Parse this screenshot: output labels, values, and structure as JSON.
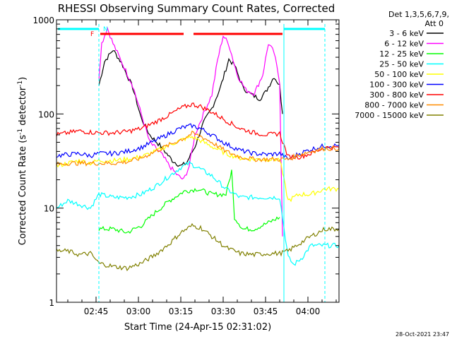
{
  "chart_data": {
    "type": "line",
    "title": "RHESSI Observing Summary Count Rates, Corrected",
    "ylabel_prefix": "Corrected Count Rate (s",
    "ylabel_mid": " detector",
    "ylabel_suffix": ")",
    "ylabel_sup": "-1",
    "xlabel": "Start Time (24-Apr-15 02:31:02)",
    "footer_date": "28-Oct-2021 23:47",
    "y_scale": "log",
    "ylim": [
      1,
      1000
    ],
    "xlim_minutes_after_start": [
      0,
      100
    ],
    "x_ticks": [
      {
        "label": "02:45",
        "t": 14
      },
      {
        "label": "03:00",
        "t": 29
      },
      {
        "label": "03:15",
        "t": 44
      },
      {
        "label": "03:30",
        "t": 59
      },
      {
        "label": "03:45",
        "t": 74
      },
      {
        "label": "04:00",
        "t": 89
      }
    ],
    "y_ticks": [
      {
        "label": "1",
        "v": 1
      },
      {
        "label": "10",
        "v": 10
      },
      {
        "label": "100",
        "v": 100
      },
      {
        "label": "1000",
        "v": 1000
      }
    ],
    "legend_header": [
      "Det 1,3,5,6,7,9,",
      "Att 0"
    ],
    "series": [
      {
        "name": "3 - 6 keV",
        "color": "#000000",
        "points": [
          [
            15,
            200
          ],
          [
            17,
            360
          ],
          [
            20,
            480
          ],
          [
            23,
            350
          ],
          [
            27,
            190
          ],
          [
            30,
            90
          ],
          [
            33,
            60
          ],
          [
            37,
            45
          ],
          [
            41,
            32
          ],
          [
            44,
            28
          ],
          [
            46,
            30
          ],
          [
            49,
            45
          ],
          [
            52,
            80
          ],
          [
            55,
            115
          ],
          [
            58,
            190
          ],
          [
            61,
            380
          ],
          [
            63,
            330
          ],
          [
            66,
            190
          ],
          [
            69,
            160
          ],
          [
            72,
            145
          ],
          [
            74,
            170
          ],
          [
            77,
            250
          ],
          [
            79,
            200
          ],
          [
            80,
            100
          ]
        ]
      },
      {
        "name": "6 - 12 keV",
        "color": "#ff00ff",
        "points": [
          [
            15,
            240
          ],
          [
            16,
            560
          ],
          [
            18,
            820
          ],
          [
            20,
            560
          ],
          [
            23,
            360
          ],
          [
            27,
            200
          ],
          [
            30,
            100
          ],
          [
            33,
            50
          ],
          [
            37,
            38
          ],
          [
            40,
            28
          ],
          [
            43,
            22
          ],
          [
            45,
            20
          ],
          [
            47,
            28
          ],
          [
            49,
            60
          ],
          [
            52,
            100
          ],
          [
            55,
            160
          ],
          [
            57,
            370
          ],
          [
            59,
            680
          ],
          [
            61,
            550
          ],
          [
            64,
            260
          ],
          [
            67,
            180
          ],
          [
            70,
            165
          ],
          [
            73,
            260
          ],
          [
            75,
            560
          ],
          [
            77,
            450
          ],
          [
            79,
            220
          ],
          [
            80,
            5
          ]
        ]
      },
      {
        "name": "12 - 25 keV",
        "color": "#00ff00",
        "points": [
          [
            15,
            6
          ],
          [
            20,
            6
          ],
          [
            25,
            5.5
          ],
          [
            30,
            6.5
          ],
          [
            35,
            9
          ],
          [
            40,
            12
          ],
          [
            45,
            15
          ],
          [
            50,
            16
          ],
          [
            55,
            14
          ],
          [
            60,
            14
          ],
          [
            62,
            25
          ],
          [
            63,
            8
          ],
          [
            66,
            6
          ],
          [
            70,
            6
          ],
          [
            75,
            7
          ],
          [
            79,
            8
          ]
        ]
      },
      {
        "name": "25 - 50 keV",
        "color": "#00ffff",
        "points": [
          [
            0,
            10
          ],
          [
            4,
            12
          ],
          [
            8,
            11
          ],
          [
            12,
            10
          ],
          [
            15,
            14
          ],
          [
            20,
            13
          ],
          [
            25,
            13
          ],
          [
            30,
            14
          ],
          [
            35,
            17
          ],
          [
            40,
            22
          ],
          [
            44,
            27
          ],
          [
            47,
            30
          ],
          [
            50,
            27
          ],
          [
            55,
            22
          ],
          [
            60,
            16
          ],
          [
            65,
            13
          ],
          [
            70,
            13
          ],
          [
            75,
            13
          ],
          [
            79,
            13
          ],
          [
            82,
            3
          ],
          [
            84,
            2.5
          ],
          [
            87,
            3
          ],
          [
            90,
            4
          ],
          [
            95,
            4
          ],
          [
            100,
            4
          ]
        ]
      },
      {
        "name": "50 - 100 keV",
        "color": "#ffff00",
        "points": [
          [
            0,
            28
          ],
          [
            4,
            30
          ],
          [
            8,
            32
          ],
          [
            12,
            30
          ],
          [
            15,
            32
          ],
          [
            20,
            32
          ],
          [
            25,
            33
          ],
          [
            30,
            35
          ],
          [
            35,
            40
          ],
          [
            40,
            47
          ],
          [
            45,
            54
          ],
          [
            48,
            57
          ],
          [
            51,
            52
          ],
          [
            55,
            45
          ],
          [
            60,
            38
          ],
          [
            65,
            34
          ],
          [
            70,
            33
          ],
          [
            75,
            33
          ],
          [
            79,
            33
          ],
          [
            82,
            12
          ],
          [
            86,
            14
          ],
          [
            90,
            14
          ],
          [
            95,
            16
          ],
          [
            100,
            16
          ]
        ]
      },
      {
        "name": "100 - 300 keV",
        "color": "#0000ff",
        "points": [
          [
            0,
            36
          ],
          [
            4,
            37
          ],
          [
            8,
            38
          ],
          [
            12,
            36
          ],
          [
            15,
            38
          ],
          [
            20,
            38
          ],
          [
            25,
            40
          ],
          [
            30,
            44
          ],
          [
            35,
            52
          ],
          [
            40,
            62
          ],
          [
            44,
            71
          ],
          [
            48,
            75
          ],
          [
            51,
            70
          ],
          [
            55,
            60
          ],
          [
            60,
            48
          ],
          [
            65,
            41
          ],
          [
            70,
            38
          ],
          [
            75,
            37
          ],
          [
            79,
            38
          ],
          [
            82,
            33
          ],
          [
            86,
            38
          ],
          [
            90,
            42
          ],
          [
            95,
            46
          ],
          [
            100,
            46
          ]
        ]
      },
      {
        "name": "300 - 800 keV",
        "color": "#ff0000",
        "points": [
          [
            0,
            60
          ],
          [
            4,
            63
          ],
          [
            8,
            66
          ],
          [
            12,
            64
          ],
          [
            15,
            63
          ],
          [
            20,
            63
          ],
          [
            25,
            65
          ],
          [
            30,
            70
          ],
          [
            35,
            82
          ],
          [
            40,
            98
          ],
          [
            44,
            115
          ],
          [
            48,
            127
          ],
          [
            51,
            120
          ],
          [
            55,
            105
          ],
          [
            60,
            85
          ],
          [
            65,
            70
          ],
          [
            70,
            63
          ],
          [
            75,
            60
          ],
          [
            79,
            62
          ],
          [
            82,
            35
          ],
          [
            86,
            35
          ],
          [
            90,
            38
          ],
          [
            95,
            44
          ],
          [
            100,
            44
          ]
        ]
      },
      {
        "name": "800 - 7000 keV",
        "color": "#ff8c00",
        "points": [
          [
            0,
            29
          ],
          [
            4,
            30
          ],
          [
            8,
            30
          ],
          [
            12,
            30
          ],
          [
            15,
            30
          ],
          [
            20,
            30
          ],
          [
            25,
            31
          ],
          [
            30,
            34
          ],
          [
            35,
            40
          ],
          [
            40,
            47
          ],
          [
            45,
            55
          ],
          [
            48,
            62
          ],
          [
            51,
            58
          ],
          [
            55,
            50
          ],
          [
            60,
            40
          ],
          [
            65,
            35
          ],
          [
            70,
            33
          ],
          [
            75,
            33
          ],
          [
            79,
            33
          ],
          [
            82,
            33
          ],
          [
            86,
            37
          ],
          [
            90,
            40
          ],
          [
            95,
            43
          ],
          [
            100,
            43
          ]
        ]
      },
      {
        "name": "7000 - 15000 keV",
        "color": "#808000",
        "points": [
          [
            0,
            3.5
          ],
          [
            4,
            3.5
          ],
          [
            8,
            3.2
          ],
          [
            12,
            3.3
          ],
          [
            15,
            2.6
          ],
          [
            20,
            2.4
          ],
          [
            25,
            2.3
          ],
          [
            30,
            2.6
          ],
          [
            35,
            3.2
          ],
          [
            40,
            4.2
          ],
          [
            44,
            5.5
          ],
          [
            48,
            6.5
          ],
          [
            51,
            6.2
          ],
          [
            55,
            5
          ],
          [
            60,
            3.8
          ],
          [
            65,
            3.3
          ],
          [
            70,
            3.2
          ],
          [
            75,
            3.3
          ],
          [
            79,
            3.3
          ],
          [
            82,
            3.5
          ],
          [
            86,
            4.2
          ],
          [
            90,
            5
          ],
          [
            95,
            6
          ],
          [
            100,
            6
          ]
        ]
      }
    ],
    "flags": [
      {
        "name": "night",
        "label": "N",
        "color": "#00ffff"
      },
      {
        "name": "flare",
        "label": "F",
        "color": "#ff0000"
      }
    ]
  }
}
